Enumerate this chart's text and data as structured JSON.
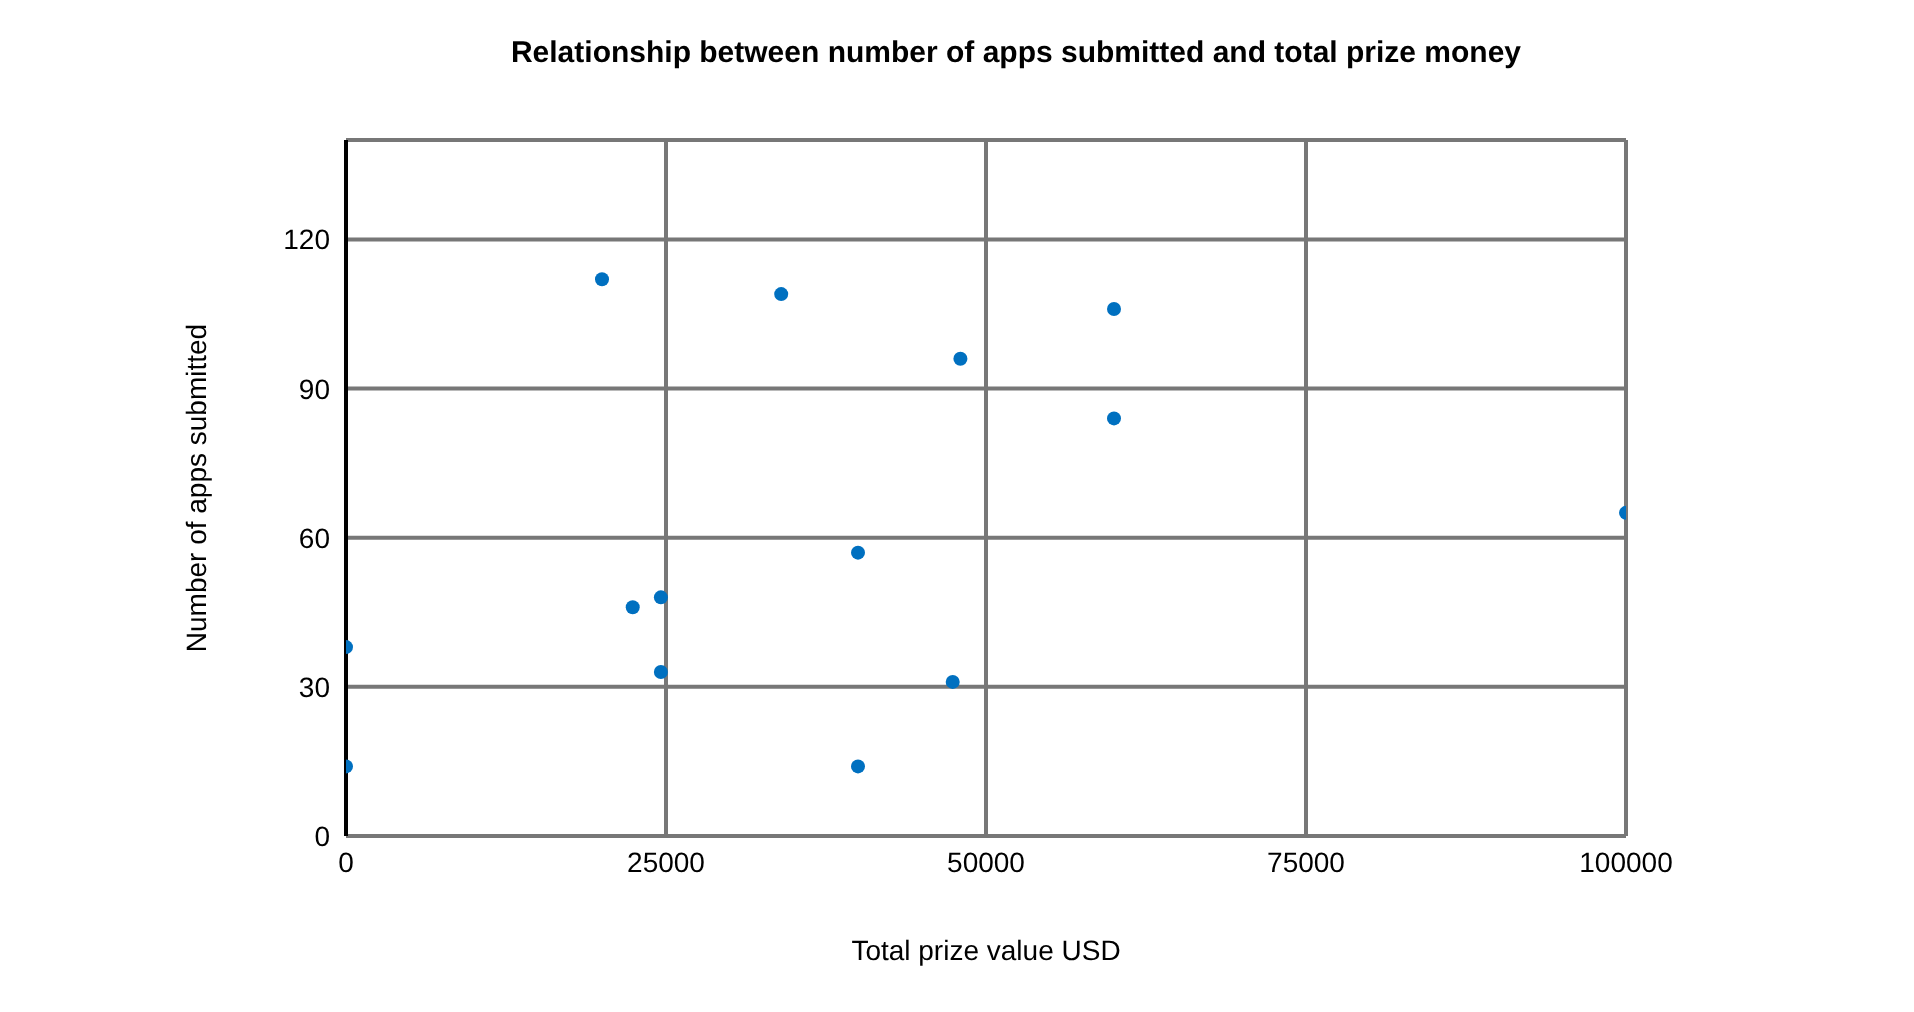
{
  "chart_data": {
    "type": "scatter",
    "title": "Relationship between number of apps submitted and total prize money",
    "xlabel": "Total prize value USD",
    "ylabel": "Number of apps submitted",
    "x": [
      0,
      0,
      20000,
      34000,
      48000,
      60000,
      60000,
      100000,
      40000,
      22400,
      24600,
      24600,
      47400,
      40000
    ],
    "series": [
      {
        "color": "#0070c0",
        "values": [
          38,
          14,
          112,
          109,
          96,
          106,
          84,
          65,
          57,
          46,
          48,
          33,
          31,
          14
        ]
      }
    ],
    "xlim": [
      0,
      100000
    ],
    "ylim": [
      0,
      140
    ],
    "xticks": [
      0,
      25000,
      50000,
      75000,
      100000
    ],
    "yticks": [
      0,
      30,
      60,
      90,
      120
    ],
    "grid": true,
    "marker": "circle"
  }
}
